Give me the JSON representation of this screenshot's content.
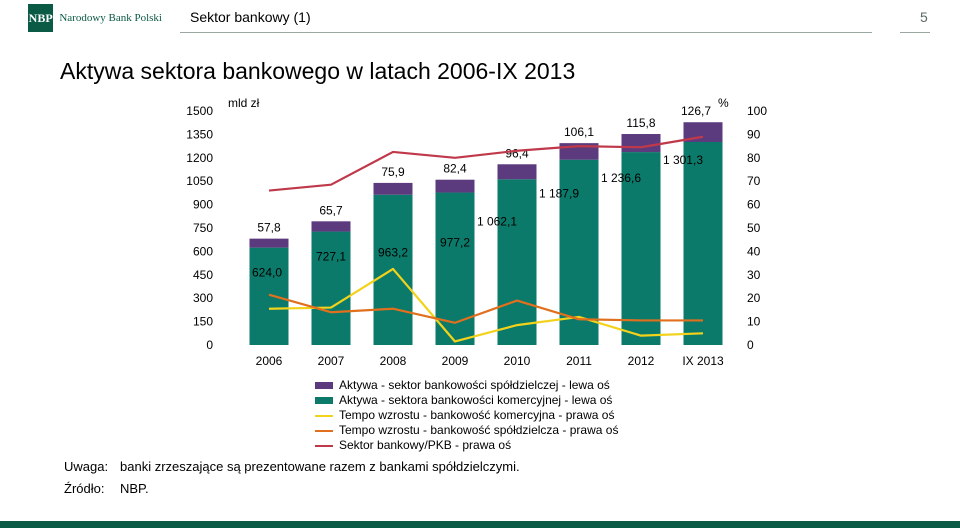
{
  "header": {
    "logo_mark": "NBP",
    "logo_text": "Narodowy Bank Polski",
    "section": "Sektor bankowy (1)",
    "page": "5"
  },
  "title": "Aktywa sektora bankowego w latach 2006-IX 2013",
  "colors": {
    "coop_bar": "#5b3a7e",
    "commercial_bar": "#0b7a6a",
    "commercial_growth": "#f2d21b",
    "coop_growth": "#e0701d",
    "gdp_ratio": "#c0394b",
    "brand": "#0b5a45"
  },
  "chart_data": {
    "type": "bar",
    "stacked": true,
    "categories": [
      "2006",
      "2007",
      "2008",
      "2009",
      "2010",
      "2011",
      "2012",
      "IX 2013"
    ],
    "left_axis": {
      "label": "mld zł",
      "range": [
        0,
        1500
      ],
      "ticks": [
        "0",
        "150",
        "300",
        "450",
        "600",
        "750",
        "900",
        "1050",
        "1200",
        "1350",
        "1500"
      ]
    },
    "right_axis": {
      "label": "%",
      "range": [
        0,
        100
      ],
      "ticks": [
        "0",
        "10",
        "20",
        "30",
        "40",
        "50",
        "60",
        "70",
        "80",
        "90",
        "100"
      ]
    },
    "series": [
      {
        "name": "Aktywa - sektora bankowości komercyjnej - lewa oś",
        "type": "bar",
        "axis": "left",
        "values": [
          624.0,
          727.1,
          963.2,
          977.2,
          1062.1,
          1187.9,
          1236.6,
          1301.3
        ],
        "labels": [
          "624,0",
          "727,1",
          "963,2",
          "977,2",
          "1 062,1",
          "1 187,9",
          "1 236,6",
          "1 301,3"
        ]
      },
      {
        "name": "Aktywa - sektor bankowości spółdzielczej - lewa oś",
        "type": "bar",
        "axis": "left",
        "values": [
          57.8,
          65.7,
          75.9,
          82.4,
          96.4,
          106.1,
          115.8,
          126.7
        ],
        "labels": [
          "57,8",
          "65,7",
          "75,9",
          "82,4",
          "96,4",
          "106,1",
          "115,8",
          "126,7"
        ]
      },
      {
        "name": "Tempo wzrostu - bankowość komercyjna - prawa oś",
        "type": "line",
        "axis": "right",
        "values": [
          15.5,
          16.0,
          32.5,
          1.5,
          8.5,
          12.0,
          4.0,
          5.0
        ]
      },
      {
        "name": "Tempo wzrostu - bankowość spółdzielcza - prawa oś",
        "type": "line",
        "axis": "right",
        "values": [
          21.5,
          14.0,
          15.5,
          9.5,
          19.0,
          11.0,
          10.5,
          10.5
        ]
      },
      {
        "name": "Sektor bankowy/PKB - prawa oś",
        "type": "line",
        "axis": "right",
        "values": [
          66,
          68.5,
          82.5,
          80,
          83,
          85,
          84.5,
          89
        ]
      }
    ]
  },
  "notes": [
    {
      "label": "Uwaga:",
      "text": "banki zrzeszające są prezentowane razem z bankami spółdzielczymi."
    },
    {
      "label": "Źródło:",
      "text": "NBP."
    }
  ]
}
